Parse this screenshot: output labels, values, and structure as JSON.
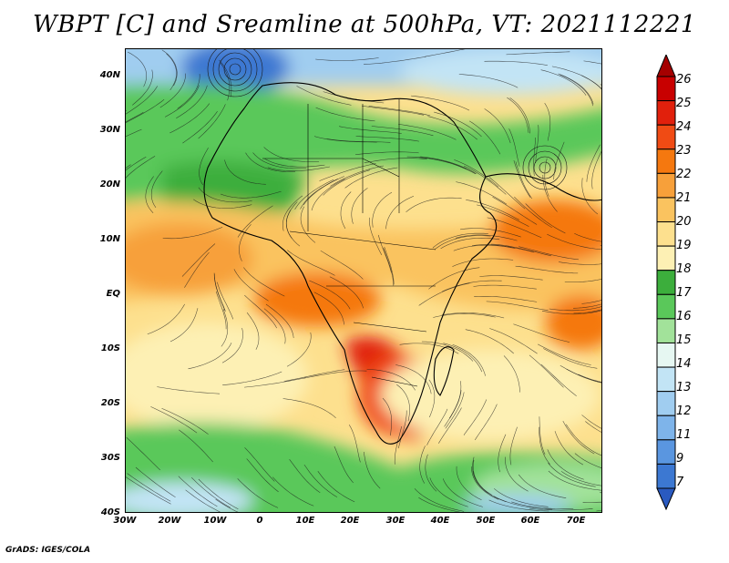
{
  "title": "WBPT [C] and Sreamline at 500hPa, VT: 2021112221",
  "footer": "GrADS: IGES/COLA",
  "axes": {
    "lat_labels": [
      "40N",
      "30N",
      "20N",
      "10N",
      "EQ",
      "10S",
      "20S",
      "30S",
      "40S"
    ],
    "lon_labels": [
      "30W",
      "20W",
      "10W",
      "0",
      "10E",
      "20E",
      "30E",
      "40E",
      "50E",
      "60E",
      "70E"
    ],
    "lat_range": [
      -40,
      44
    ],
    "lon_range": [
      -30,
      76
    ]
  },
  "colorbar": {
    "labels": [
      "26",
      "25",
      "24",
      "23",
      "22",
      "21",
      "20",
      "19",
      "18",
      "17",
      "16",
      "15",
      "14",
      "13",
      "12",
      "11",
      "9",
      "7"
    ],
    "colors": [
      "#a50000",
      "#c80000",
      "#e1200c",
      "#f04b14",
      "#f5780f",
      "#f7a03a",
      "#fac35f",
      "#fde08e",
      "#fdf0b4",
      "#3cae3c",
      "#5ac85a",
      "#a2e29a",
      "#e6f7f2",
      "#c2e4f5",
      "#a0cdf0",
      "#7eb4ea",
      "#5a96e0",
      "#3c78d2",
      "#2a5ac0"
    ]
  },
  "map_data": {
    "fields": [
      {
        "region": "north-blue-band",
        "value_range": [
          11,
          15
        ]
      },
      {
        "region": "north-green-band",
        "value_range": [
          16,
          18
        ]
      },
      {
        "region": "tropical-belt",
        "value_range": [
          19,
          21
        ]
      },
      {
        "region": "southeast-africa-max",
        "value_range": [
          22,
          24
        ]
      },
      {
        "region": "arabian-sea-max",
        "value_range": [
          21,
          23
        ]
      },
      {
        "region": "south-green-band",
        "value_range": [
          16,
          18
        ]
      }
    ]
  }
}
